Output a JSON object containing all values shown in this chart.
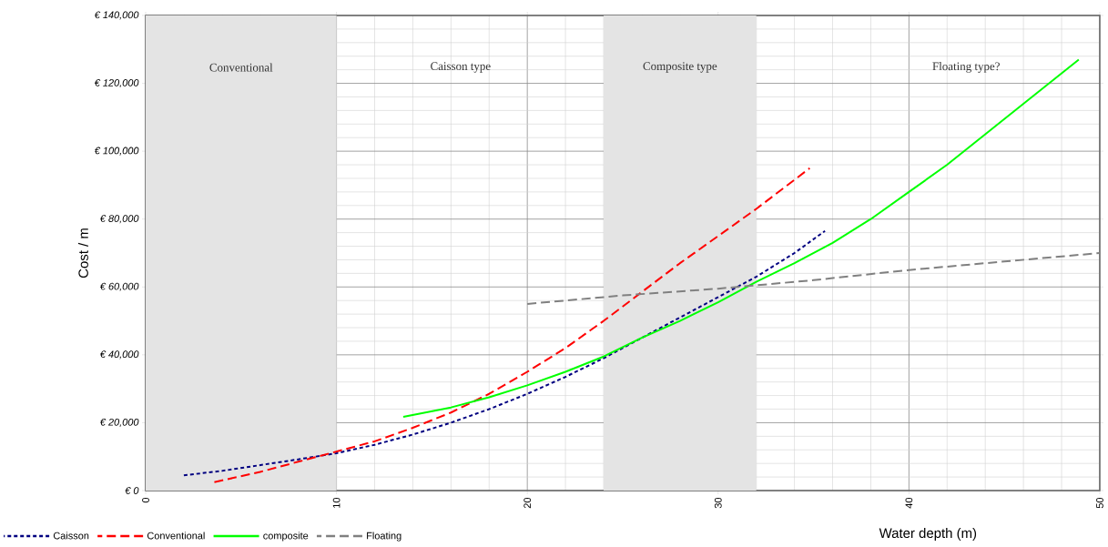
{
  "chart_data": {
    "type": "line",
    "xlabel": "Water depth (m)",
    "ylabel": "Cost / m",
    "xlim": [
      0,
      50
    ],
    "xticks": [
      0,
      10,
      20,
      30,
      40,
      50
    ],
    "ylim": [
      0,
      140000
    ],
    "yticks": [
      {
        "value": 0,
        "label": "€ 0"
      },
      {
        "value": 20000,
        "label": "€ 20,000"
      },
      {
        "value": 40000,
        "label": "€ 40,000"
      },
      {
        "value": 60000,
        "label": "€ 60,000"
      },
      {
        "value": 80000,
        "label": "€ 80,000"
      },
      {
        "value": 100000,
        "label": "€ 100,000"
      },
      {
        "value": 120000,
        "label": "€ 120,000"
      },
      {
        "value": 140000,
        "label": "€ 140,000"
      }
    ],
    "grid": true,
    "legend": "bottom",
    "marker": "none",
    "bands": [
      {
        "axis": "x",
        "from": 0,
        "to": 10,
        "label": "Conventional",
        "color": "#e4e4e4"
      },
      {
        "axis": "x",
        "from": 24,
        "to": 32,
        "label": "Composite type",
        "color": "#e4e4e4"
      }
    ],
    "annotations": [
      "Caisson type",
      "Floating type?"
    ],
    "series": [
      {
        "name": "Caisson",
        "color": "#000080",
        "line_style": "dotted",
        "x": [
          2,
          4,
          6,
          8,
          10,
          12,
          14,
          16,
          18,
          20,
          22,
          24,
          26,
          28,
          30,
          32,
          34,
          35.6
        ],
        "values": [
          4500,
          5800,
          7500,
          9200,
          11000,
          13500,
          16500,
          20000,
          24000,
          28500,
          33500,
          39000,
          45000,
          51000,
          57000,
          63000,
          70000,
          76500
        ]
      },
      {
        "name": "Conventional",
        "color": "#ff0000",
        "line_style": "dashed",
        "x": [
          3.6,
          6,
          8,
          10,
          12,
          14,
          16,
          18,
          20,
          22,
          24,
          26,
          28,
          30,
          32,
          34.8
        ],
        "values": [
          2500,
          5500,
          8500,
          11500,
          14500,
          18500,
          23000,
          28500,
          35000,
          42000,
          50000,
          58500,
          67000,
          75000,
          83000,
          95000
        ]
      },
      {
        "name": "composite",
        "color": "#00ff00",
        "line_style": "solid",
        "x": [
          13.5,
          16,
          18,
          20,
          22,
          24,
          26,
          28,
          30,
          32,
          34,
          36,
          38,
          40,
          42,
          44,
          46,
          48.9
        ],
        "values": [
          21700,
          24500,
          27500,
          31000,
          35000,
          39500,
          45000,
          50000,
          55500,
          61500,
          67000,
          73000,
          80000,
          88000,
          96000,
          105000,
          114000,
          127000
        ]
      },
      {
        "name": "Floating",
        "color": "#808080",
        "line_style": "dashed",
        "x": [
          20,
          25,
          30,
          35,
          40,
          45,
          50
        ],
        "values": [
          55000,
          57500,
          59500,
          62000,
          65000,
          67500,
          70000
        ]
      }
    ]
  }
}
